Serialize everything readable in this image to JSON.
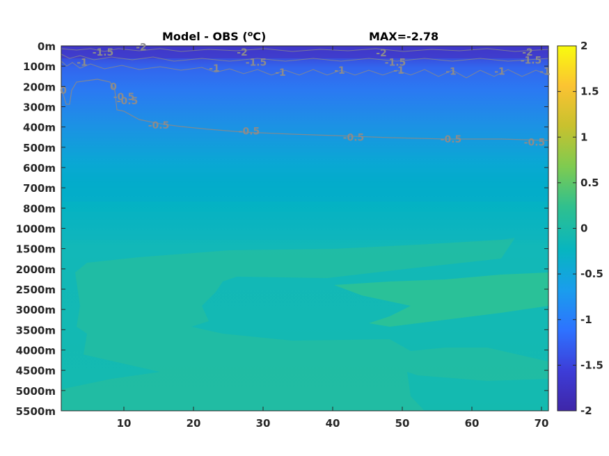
{
  "chart_data": {
    "type": "heatmap",
    "title": "Model - OBS (",
    "title_unit_sup": "o",
    "title_unit_end": "C)",
    "max_label": "MAX=-2.78",
    "x_ticks": [
      10,
      20,
      30,
      40,
      50,
      60,
      70
    ],
    "xlim": [
      1,
      71
    ],
    "y_ticks": [
      "0m",
      "100m",
      "200m",
      "300m",
      "400m",
      "500m",
      "600m",
      "700m",
      "800m",
      "1000m",
      "1500m",
      "2000m",
      "2500m",
      "3000m",
      "3500m",
      "4000m",
      "4500m",
      "5000m",
      "5500m"
    ],
    "colorbar": {
      "range": [
        -2,
        2
      ],
      "ticks": [
        "2",
        "1.5",
        "1",
        "0.5",
        "0",
        "-0.5",
        "-1",
        "-1.5",
        "-2"
      ],
      "colors": [
        "#f9fb0e",
        "#fbc332",
        "#c8c12e",
        "#7fcb50",
        "#30c08e",
        "#07b5c0",
        "#1a9ded",
        "#2e72ff",
        "#3d3dd8",
        "#3e26a8"
      ]
    },
    "contour_labels": [
      {
        "text": "-1.5",
        "x": 7,
        "d": 0.3
      },
      {
        "text": "-2",
        "x": 12.5,
        "d": 0.05
      },
      {
        "text": "-1",
        "x": 4,
        "d": 0.8
      },
      {
        "text": "-2",
        "x": 27,
        "d": 0.3
      },
      {
        "text": "-1.5",
        "x": 29,
        "d": 0.8
      },
      {
        "text": "-1",
        "x": 23,
        "d": 1.1
      },
      {
        "text": "-1",
        "x": 32.5,
        "d": 1.3
      },
      {
        "text": "-1",
        "x": 41,
        "d": 1.2
      },
      {
        "text": "-2",
        "x": 47,
        "d": 0.35
      },
      {
        "text": "-1.5",
        "x": 49,
        "d": 0.8
      },
      {
        "text": "-1",
        "x": 49.5,
        "d": 1.2
      },
      {
        "text": "-1",
        "x": 57,
        "d": 1.25
      },
      {
        "text": "-1",
        "x": 64,
        "d": 1.25
      },
      {
        "text": "-2",
        "x": 68,
        "d": 0.3
      },
      {
        "text": "-1.5",
        "x": 68.5,
        "d": 0.7
      },
      {
        "text": "-1",
        "x": 70.5,
        "d": 1.25
      },
      {
        "text": "0",
        "x": 1.3,
        "d": 2.2
      },
      {
        "text": "0",
        "x": 8.5,
        "d": 2.0
      },
      {
        "text": "-0.5",
        "x": 10,
        "d": 2.5
      },
      {
        "text": "-0.5",
        "x": 10.5,
        "d": 2.7
      },
      {
        "text": "-0.5",
        "x": 15,
        "d": 3.9
      },
      {
        "text": "-0.5",
        "x": 28,
        "d": 4.2
      },
      {
        "text": "-0.5",
        "x": 43,
        "d": 4.5
      },
      {
        "text": "-0.5",
        "x": 57,
        "d": 4.6
      },
      {
        "text": "-0.5",
        "x": 69,
        "d": 4.75
      }
    ]
  }
}
